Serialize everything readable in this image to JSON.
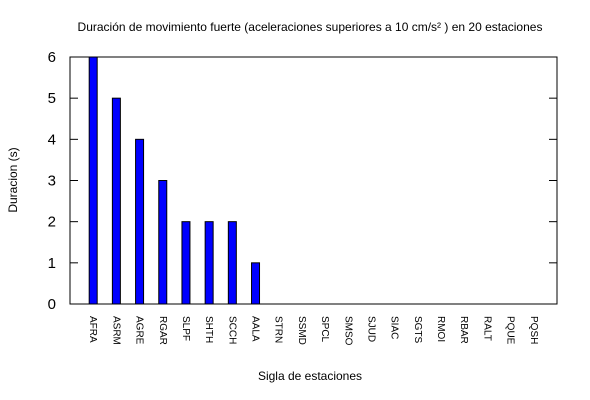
{
  "chart_data": {
    "type": "bar",
    "title": "Duración de movimiento fuerte (aceleraciones superiores a 10 cm/s² ) en 20 estaciones",
    "x_label": "Sigla de estaciones",
    "y_label": "Duracion (s)",
    "categories": [
      "AFRA",
      "ASRM",
      "AGRE",
      "RGAR",
      "SLPF",
      "SHTH",
      "SCCH",
      "AALA",
      "STRN",
      "SSMD",
      "SPCL",
      "SMSO",
      "SJUD",
      "SIAC",
      "SGTS",
      "RMOI",
      "RBAR",
      "RALT",
      "PQUE",
      "PQSH"
    ],
    "values": [
      6,
      5,
      4,
      3,
      2,
      2,
      2,
      1,
      0,
      0,
      0,
      0,
      0,
      0,
      0,
      0,
      0,
      0,
      0,
      0
    ],
    "color": "#0000ff",
    "ylim": [
      0,
      6
    ],
    "yticks": [
      0,
      1,
      2,
      3,
      4,
      5,
      6
    ],
    "grid": false
  }
}
